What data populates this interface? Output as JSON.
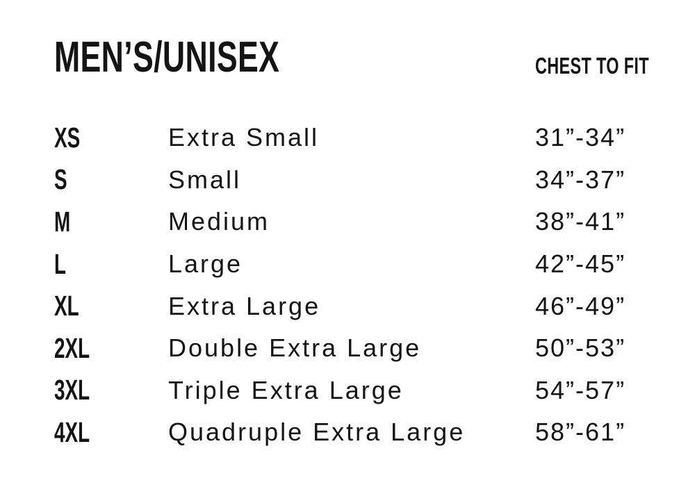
{
  "header": {
    "title": "MEN’S/UNISEX",
    "measure_label": "CHEST TO FIT"
  },
  "table": {
    "columns": [
      "size_code",
      "size_name",
      "chest_to_fit"
    ],
    "rows": [
      {
        "code": "XS",
        "name": "Extra Small",
        "chest": "31”-34”"
      },
      {
        "code": "S",
        "name": "Small",
        "chest": "34”-37”"
      },
      {
        "code": "M",
        "name": "Medium",
        "chest": "38”-41”"
      },
      {
        "code": "L",
        "name": "Large",
        "chest": "42”-45”"
      },
      {
        "code": "XL",
        "name": "Extra Large",
        "chest": "46”-49”"
      },
      {
        "code": "2XL",
        "name": "Double Extra Large",
        "chest": "50”-53”"
      },
      {
        "code": "3XL",
        "name": "Triple Extra Large",
        "chest": "54”-57”"
      },
      {
        "code": "4XL",
        "name": "Quadruple Extra Large",
        "chest": "58”-61”"
      }
    ]
  },
  "colors": {
    "text": "#141414",
    "background": "#ffffff"
  }
}
